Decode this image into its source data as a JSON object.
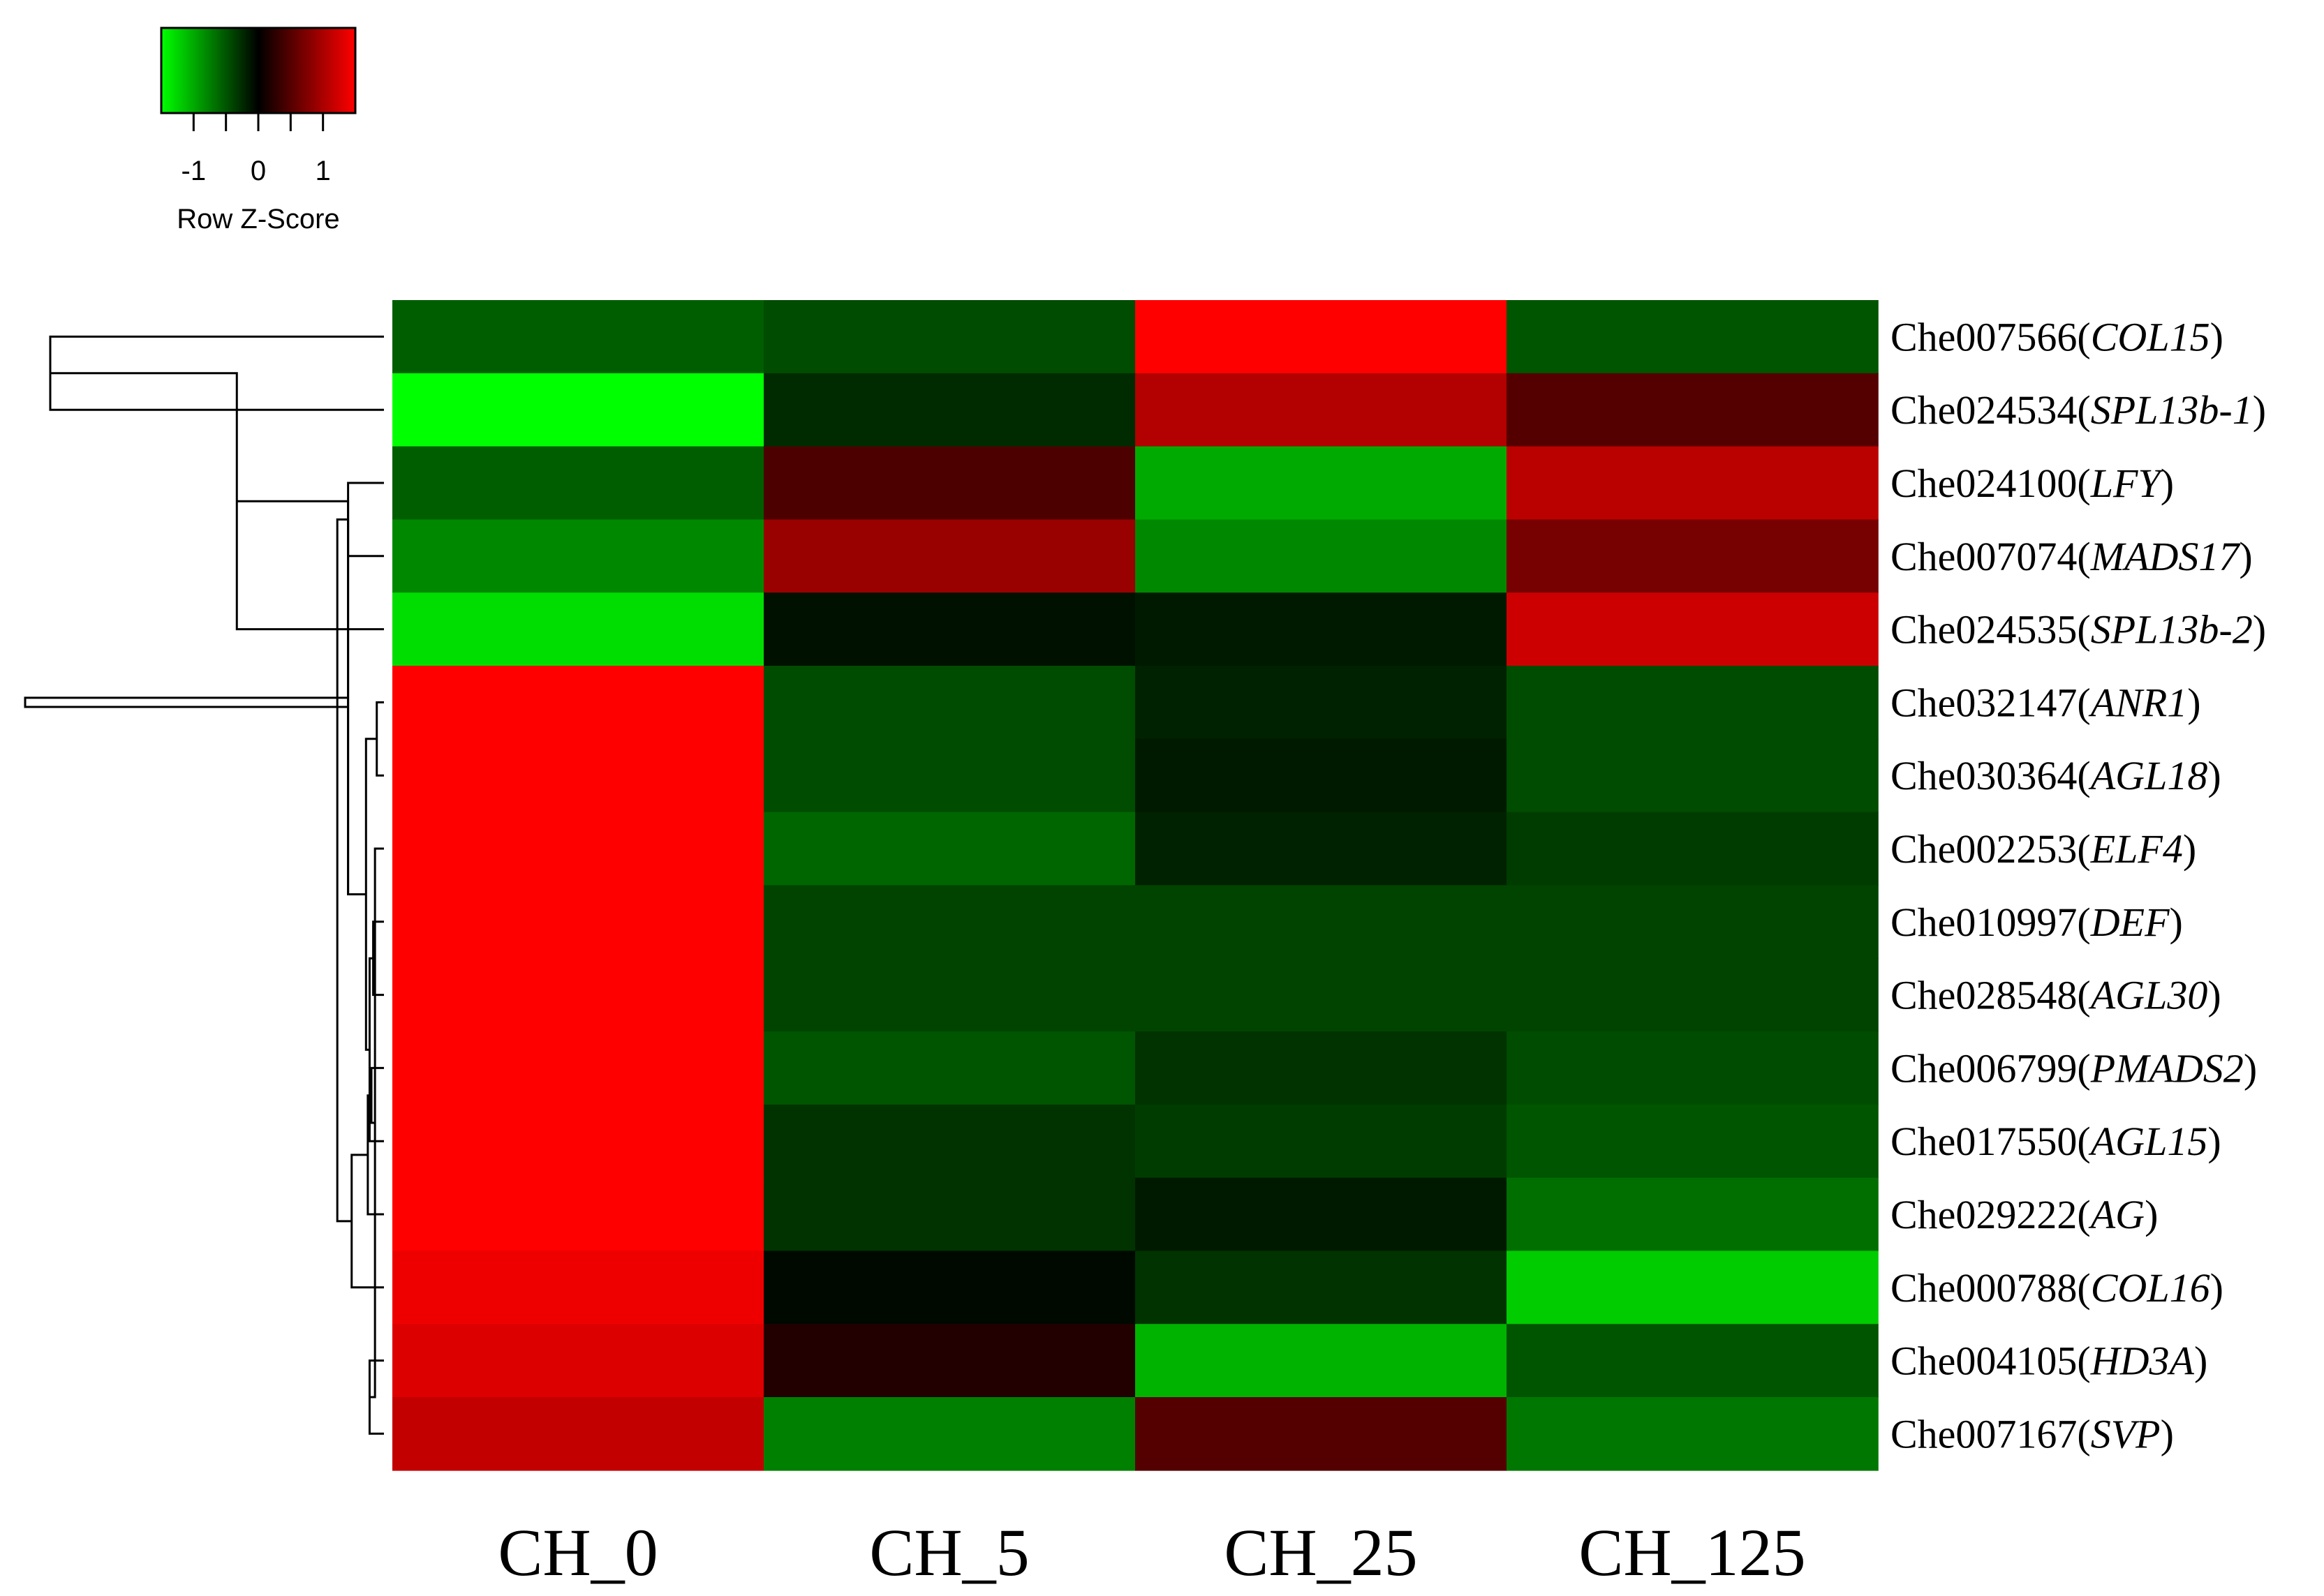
{
  "chart_data": {
    "type": "heatmap",
    "columns": [
      "CH_0",
      "CH_5",
      "CH_25",
      "CH_125"
    ],
    "rows": [
      {
        "id": "Che007566",
        "gene": "COL15"
      },
      {
        "id": "Che024534",
        "gene": "SPL13b-1"
      },
      {
        "id": "Che024100",
        "gene": "LFY"
      },
      {
        "id": "Che007074",
        "gene": "MADS17"
      },
      {
        "id": "Che024535",
        "gene": "SPL13b-2"
      },
      {
        "id": "Che032147",
        "gene": "ANR1"
      },
      {
        "id": "Che030364",
        "gene": "AGL18"
      },
      {
        "id": "Che002253",
        "gene": "ELF4"
      },
      {
        "id": "Che010997",
        "gene": "DEF"
      },
      {
        "id": "Che028548",
        "gene": "AGL30"
      },
      {
        "id": "Che006799",
        "gene": "PMADS2"
      },
      {
        "id": "Che017550",
        "gene": "AGL15"
      },
      {
        "id": "Che029222",
        "gene": "AG"
      },
      {
        "id": "Che000788",
        "gene": "COL16"
      },
      {
        "id": "Che004105",
        "gene": "HD3A"
      },
      {
        "id": "Che007167",
        "gene": "SVP"
      }
    ],
    "values": [
      [
        -0.55,
        -0.45,
        1.5,
        -0.5
      ],
      [
        -1.5,
        -0.25,
        1.05,
        0.5
      ],
      [
        -0.55,
        0.45,
        -1.0,
        1.1
      ],
      [
        -0.8,
        0.9,
        -0.8,
        0.7
      ],
      [
        -1.3,
        -0.1,
        -0.15,
        1.2
      ],
      [
        1.5,
        -0.45,
        -0.2,
        -0.45
      ],
      [
        1.5,
        -0.45,
        -0.15,
        -0.45
      ],
      [
        1.5,
        -0.6,
        -0.2,
        -0.35
      ],
      [
        1.5,
        -0.4,
        -0.4,
        -0.4
      ],
      [
        1.5,
        -0.4,
        -0.4,
        -0.4
      ],
      [
        1.5,
        -0.5,
        -0.3,
        -0.45
      ],
      [
        1.5,
        -0.3,
        -0.35,
        -0.5
      ],
      [
        1.5,
        -0.3,
        -0.15,
        -0.65
      ],
      [
        1.4,
        -0.05,
        -0.3,
        -1.2
      ],
      [
        1.3,
        0.2,
        -1.05,
        -0.5
      ],
      [
        1.15,
        -0.75,
        0.5,
        -0.7
      ]
    ],
    "color_scale": {
      "low": "#00ff00",
      "mid": "#000000",
      "high": "#ff0000",
      "range": [
        -1.5,
        1.5
      ]
    },
    "color_key": {
      "title": "Row Z-Score",
      "tick_labels": [
        "-1",
        "0",
        "1"
      ],
      "tick_values": [
        -1,
        0,
        1
      ]
    },
    "row_dendrogram": {
      "merges": [
        [
          0,
          1,
          0.93
        ],
        [
          2,
          3,
          0.1
        ],
        [
          4,
          16,
          0.41
        ],
        [
          14,
          15,
          0.04
        ],
        [
          5,
          6,
          0.02
        ],
        [
          7,
          19,
          0.025
        ],
        [
          8,
          9,
          0.03
        ],
        [
          10,
          21,
          0.035
        ],
        [
          11,
          22,
          0.04
        ],
        [
          12,
          23,
          0.045
        ],
        [
          20,
          24,
          0.05
        ],
        [
          13,
          25,
          0.09
        ],
        [
          18,
          26,
          0.1
        ],
        [
          17,
          26,
          0.1
        ],
        [
          17,
          27,
          0.13
        ],
        [
          28,
          29,
          1.0
        ]
      ]
    }
  }
}
